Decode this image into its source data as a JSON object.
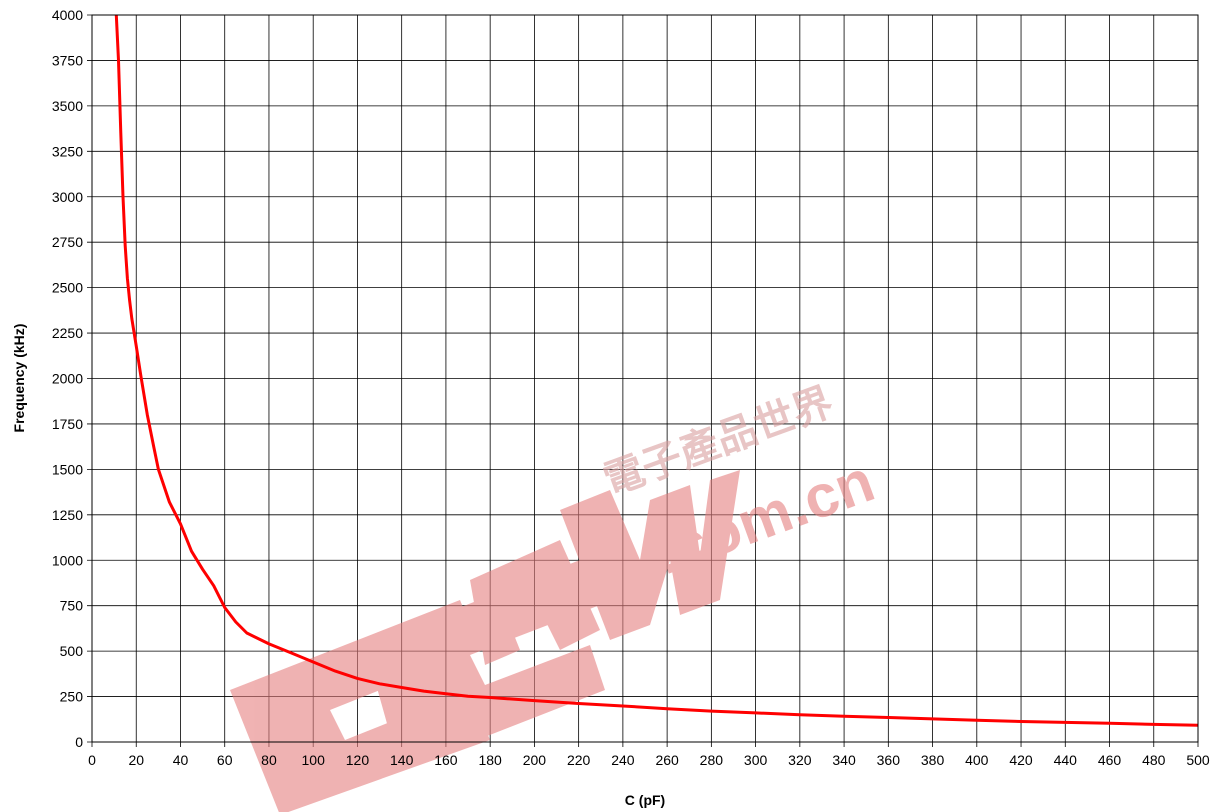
{
  "chart_data": {
    "type": "line",
    "xlabel": "C (pF)",
    "ylabel": "Frequency (kHz)",
    "xlim": [
      0,
      500
    ],
    "ylim": [
      0,
      4000
    ],
    "xticks": [
      0,
      20,
      40,
      60,
      80,
      100,
      120,
      140,
      160,
      180,
      200,
      220,
      240,
      260,
      280,
      300,
      320,
      340,
      360,
      380,
      400,
      420,
      440,
      460,
      480,
      500
    ],
    "yticks": [
      0,
      250,
      500,
      750,
      1000,
      1250,
      1500,
      1750,
      2000,
      2250,
      2500,
      2750,
      3000,
      3250,
      3500,
      3750,
      4000
    ],
    "grid": true,
    "series": [
      {
        "color": "#ff0000",
        "x": [
          11,
          12,
          13,
          14,
          15,
          16,
          17,
          18,
          20,
          22,
          25,
          28,
          30,
          35,
          40,
          45,
          50,
          55,
          60,
          65,
          70,
          80,
          90,
          100,
          110,
          120,
          130,
          140,
          150,
          160,
          170,
          180,
          200,
          220,
          240,
          260,
          280,
          300,
          320,
          340,
          360,
          380,
          400,
          420,
          440,
          460,
          480,
          500
        ],
        "y": [
          4000,
          3750,
          3350,
          3000,
          2730,
          2550,
          2430,
          2330,
          2180,
          2020,
          1800,
          1620,
          1500,
          1320,
          1200,
          1050,
          950,
          860,
          740,
          660,
          600,
          540,
          490,
          440,
          390,
          350,
          320,
          300,
          280,
          265,
          252,
          245,
          228,
          212,
          198,
          183,
          170,
          160,
          150,
          142,
          135,
          127,
          120,
          113,
          108,
          103,
          97,
          92
        ]
      }
    ]
  },
  "watermark": {
    "brand": "EEPW",
    "domain": ".com.cn",
    "tagline": "電子產品世界",
    "color": "#e68080"
  }
}
